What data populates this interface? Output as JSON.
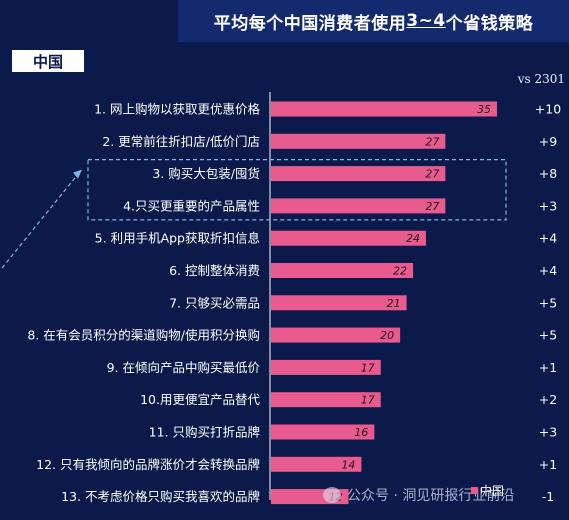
{
  "title_parts": [
    "平均每个中国消费者使用",
    "3~4",
    "个省钱策略"
  ],
  "region_label": "中国",
  "compare_label": "vs 2301",
  "legend_label": "中国",
  "watermark": "公众号 · 洞见研报行业前沿",
  "colors": {
    "bar": "#e95a8e",
    "background": "#0b1a4a",
    "highlight_box": "#7fb6e8"
  },
  "chart_data": {
    "type": "bar",
    "orientation": "horizontal",
    "categories": [
      "1. 网上购物以获取更优惠价格",
      "2. 更常前往折扣店/低价门店",
      "3. 购买大包装/囤货",
      "4.只买更重要的产品属性",
      "5. 利用手机App获取折扣信息",
      "6. 控制整体消费",
      "7. 只够买必需品",
      "8. 在有会员积分的渠道购物/使用积分换购",
      "9. 在倾向产品中购买最低价",
      "10.用更便宜产品替代",
      "11. 只购买打折品牌",
      "12. 只有我倾向的品牌涨价才会转换品牌",
      "13. 不考虑价格只购买我喜欢的品牌"
    ],
    "series": [
      {
        "name": "中国",
        "values": [
          35,
          27,
          27,
          27,
          24,
          22,
          21,
          20,
          17,
          17,
          16,
          14,
          12
        ]
      }
    ],
    "change_vs_2301": [
      "+10",
      "+9",
      "+8",
      "+3",
      "+4",
      "+4",
      "+5",
      "+5",
      "+1",
      "+2",
      "+3",
      "+1",
      "-1"
    ],
    "highlighted_categories": [
      2,
      3
    ],
    "xlim": [
      0,
      35
    ],
    "legend_position": "bottom-right"
  }
}
